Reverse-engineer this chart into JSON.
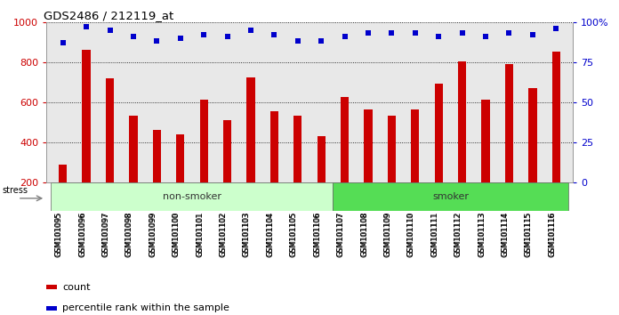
{
  "title": "GDS2486 / 212119_at",
  "categories": [
    "GSM101095",
    "GSM101096",
    "GSM101097",
    "GSM101098",
    "GSM101099",
    "GSM101100",
    "GSM101101",
    "GSM101102",
    "GSM101103",
    "GSM101104",
    "GSM101105",
    "GSM101106",
    "GSM101107",
    "GSM101108",
    "GSM101109",
    "GSM101110",
    "GSM101111",
    "GSM101112",
    "GSM101113",
    "GSM101114",
    "GSM101115",
    "GSM101116"
  ],
  "bar_values": [
    290,
    860,
    720,
    535,
    465,
    440,
    615,
    510,
    725,
    555,
    535,
    430,
    625,
    565,
    535,
    565,
    695,
    805,
    615,
    790,
    670,
    855
  ],
  "dot_values": [
    87,
    97,
    95,
    91,
    88,
    90,
    92,
    91,
    95,
    92,
    88,
    88,
    91,
    93,
    93,
    93,
    91,
    93,
    91,
    93,
    92,
    96
  ],
  "bar_color": "#cc0000",
  "dot_color": "#0000cc",
  "non_smoker_count": 12,
  "smoker_count": 10,
  "non_smoker_color": "#ccffcc",
  "smoker_color": "#55dd55",
  "ylim_left": [
    200,
    1000
  ],
  "ylim_right": [
    0,
    100
  ],
  "yticks_left": [
    200,
    400,
    600,
    800,
    1000
  ],
  "yticks_right": [
    0,
    25,
    50,
    75,
    100
  ],
  "ylabel_right_ticks": [
    "0",
    "25",
    "50",
    "75",
    "100%"
  ],
  "background_color": "#e8e8e8",
  "stress_label": "stress",
  "legend_count": "count",
  "legend_percentile": "percentile rank within the sample"
}
